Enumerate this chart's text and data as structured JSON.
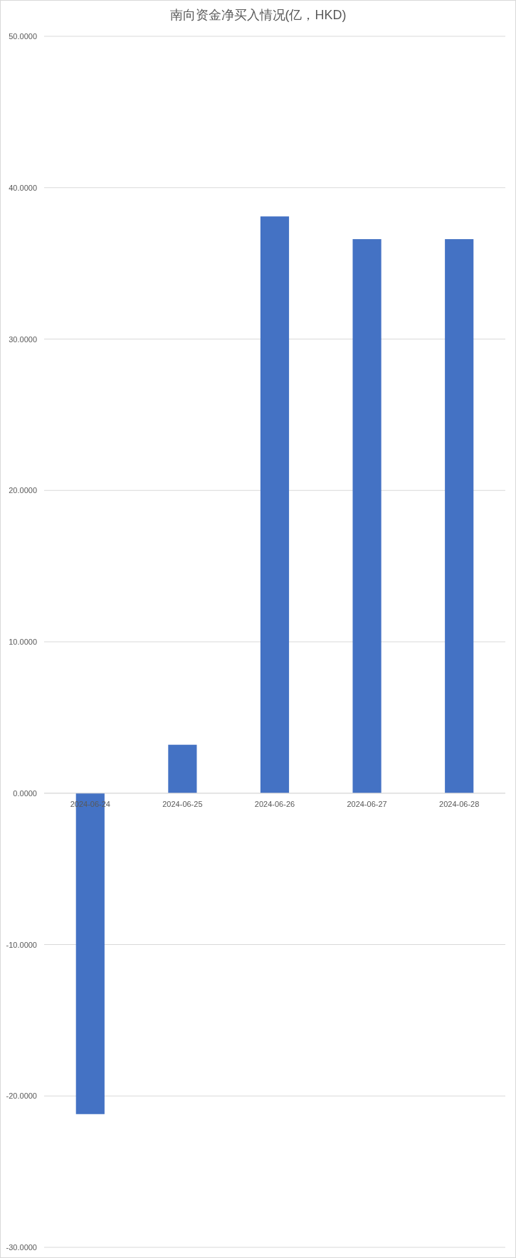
{
  "chart_data": {
    "type": "bar",
    "title": "南向资金净买入情况(亿，HKD)",
    "categories": [
      "2024-06-24",
      "2024-06-25",
      "2024-06-26",
      "2024-06-27",
      "2024-06-28"
    ],
    "values": [
      -21.2,
      3.2,
      38.1,
      36.6,
      36.6
    ],
    "color": "#4472c4",
    "ylim": [
      -30,
      50
    ],
    "yticks": [
      {
        "value": -30,
        "label": "-30.0000"
      },
      {
        "value": -20,
        "label": "-20.0000"
      },
      {
        "value": -10,
        "label": "-10.0000"
      },
      {
        "value": 0,
        "label": "0.0000"
      },
      {
        "value": 10,
        "label": "10.0000"
      },
      {
        "value": 20,
        "label": "20.0000"
      },
      {
        "value": 30,
        "label": "30.0000"
      },
      {
        "value": 40,
        "label": "40.0000"
      },
      {
        "value": 50,
        "label": "50.0000"
      }
    ],
    "grid": "y"
  }
}
